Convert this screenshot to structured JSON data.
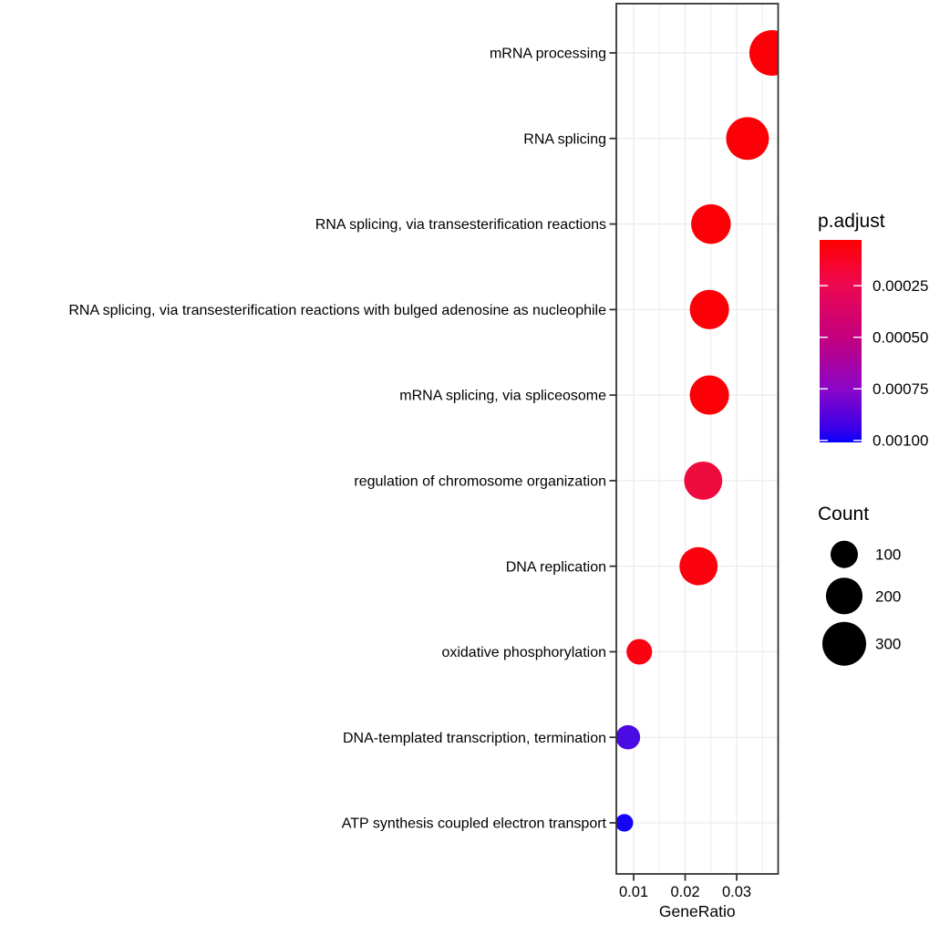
{
  "figure": {
    "background": "#ffffff",
    "panel_background": "#ffffff",
    "panel_border_color": "#333333",
    "gridline_color": "#ebebeb",
    "tick_color": "#333333",
    "text_color": "#000000"
  },
  "chart_data": {
    "type": "scatter",
    "variant": "enrichment-dotplot",
    "title": "",
    "xlabel": "GeneRatio",
    "ylabel": "",
    "grid": true,
    "xlim": [
      0.0066,
      0.0381
    ],
    "x_ticks": {
      "values": [
        0.01,
        0.02,
        0.03
      ],
      "labels": [
        "0.01",
        "0.02",
        "0.03"
      ]
    },
    "x_minor_ticks": [
      0.015,
      0.025,
      0.035
    ],
    "categories": [
      "mRNA processing",
      "RNA splicing",
      "RNA splicing, via transesterification reactions",
      "RNA splicing, via transesterification reactions with bulged adenosine as nucleophile",
      "mRNA splicing, via spliceosome",
      "regulation of chromosome organization",
      "DNA replication",
      "oxidative phosphorylation",
      "DNA-templated transcription, termination",
      "ATP synthesis coupled electron transport"
    ],
    "points": [
      {
        "term": "mRNA processing",
        "gene_ratio": 0.0369,
        "count": 330,
        "p_adjust": 1e-05,
        "color": "#fb0007"
      },
      {
        "term": "RNA splicing",
        "gene_ratio": 0.0321,
        "count": 285,
        "p_adjust": 1e-05,
        "color": "#fb0007"
      },
      {
        "term": "RNA splicing, via transesterification reactions",
        "gene_ratio": 0.025,
        "count": 240,
        "p_adjust": 1e-05,
        "color": "#fb0007"
      },
      {
        "term": "RNA splicing, via transesterification reactions with bulged adenosine as nucleophile",
        "gene_ratio": 0.0247,
        "count": 235,
        "p_adjust": 1e-05,
        "color": "#fb0007"
      },
      {
        "term": "mRNA splicing, via spliceosome",
        "gene_ratio": 0.0247,
        "count": 235,
        "p_adjust": 1e-05,
        "color": "#fb0007"
      },
      {
        "term": "regulation of chromosome organization",
        "gene_ratio": 0.0235,
        "count": 220,
        "p_adjust": 0.00018,
        "color": "#ee0b3e"
      },
      {
        "term": "DNA replication",
        "gene_ratio": 0.0226,
        "count": 220,
        "p_adjust": 2e-05,
        "color": "#fa030f"
      },
      {
        "term": "oxidative phosphorylation",
        "gene_ratio": 0.0111,
        "count": 85,
        "p_adjust": 3e-05,
        "color": "#fa0212"
      },
      {
        "term": "DNA-templated transcription, termination",
        "gene_ratio": 0.0089,
        "count": 75,
        "p_adjust": 0.00085,
        "color": "#4a0ce2"
      },
      {
        "term": "ATP synthesis coupled electron transport",
        "gene_ratio": 0.0082,
        "count": 32,
        "p_adjust": 0.00097,
        "color": "#1403f8"
      }
    ],
    "color_legend": {
      "title": "p.adjust",
      "position": "right",
      "tick_values": [
        0.00025,
        0.0005,
        0.00075,
        0.001
      ],
      "tick_labels": [
        "0.00025",
        "0.00050",
        "0.00075",
        "0.00100"
      ],
      "range": [
        2.8e-05,
        0.00101
      ],
      "gradient_stops": [
        {
          "at": 0.0,
          "color": "#ff0000"
        },
        {
          "at": 0.22,
          "color": "#ee0850"
        },
        {
          "at": 0.48,
          "color": "#c4007e"
        },
        {
          "at": 0.74,
          "color": "#8a06c8"
        },
        {
          "at": 0.93,
          "color": "#3a00e8"
        },
        {
          "at": 1.0,
          "color": "#0800fe"
        }
      ]
    },
    "size_legend": {
      "title": "Count",
      "tick_values": [
        100,
        200,
        300
      ],
      "tick_labels": [
        "100",
        "200",
        "300"
      ],
      "swatch_color": "#000000"
    }
  }
}
